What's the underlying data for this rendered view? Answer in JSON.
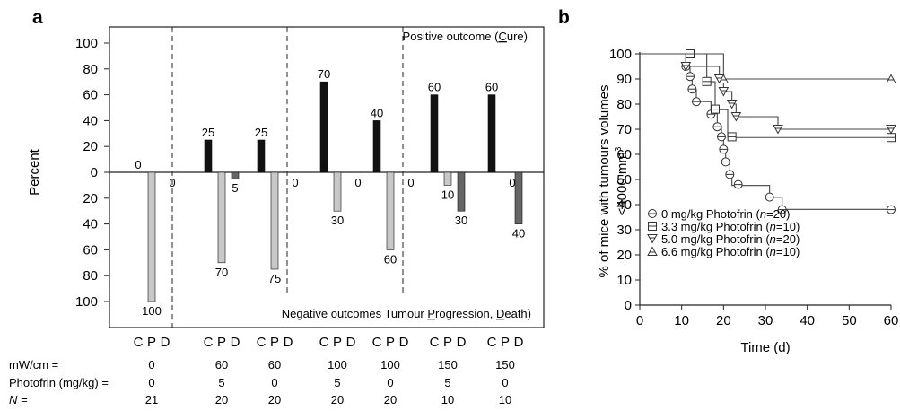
{
  "chart_data": [
    {
      "panel_label": "a",
      "type": "bar",
      "ylabel": "Percent",
      "ylim": [
        -100,
        100
      ],
      "yticks": [
        "100",
        "80",
        "60",
        "40",
        "20",
        "0",
        "20",
        "40",
        "60",
        "80",
        "100"
      ],
      "annotation_top": {
        "prefix": "Positive outcome (",
        "underlined": "C",
        "rest": "ure)"
      },
      "annotation_bottom": {
        "prefix": "Negative outcomes Tumour ",
        "u1": "P",
        "mid": "rogression, ",
        "u2": "D",
        "rest": "eath)"
      },
      "bar_letters": [
        "C",
        "P",
        "D"
      ],
      "groups": [
        {
          "cure": null,
          "progression": 100,
          "death": null,
          "labels": [
            "0",
            "100",
            "0"
          ]
        },
        {
          "cure": 25,
          "progression": 70,
          "death": 5,
          "labels": [
            "25",
            "70",
            "5"
          ]
        },
        {
          "cure": 25,
          "progression": 75,
          "death": null,
          "labels": [
            "25",
            "75",
            "0"
          ]
        },
        {
          "cure": 70,
          "progression": 30,
          "death": null,
          "labels": [
            "70",
            "30",
            "0"
          ]
        },
        {
          "cure": 40,
          "progression": 60,
          "death": null,
          "labels": [
            "40",
            "60",
            "0"
          ]
        },
        {
          "cure": 60,
          "progression": 10,
          "death": 30,
          "labels": [
            "60",
            "10",
            "30"
          ]
        },
        {
          "cure": 60,
          "progression": null,
          "death": 40,
          "labels": [
            "60",
            "0",
            "40"
          ]
        }
      ],
      "colors": {
        "cure": "#111111",
        "progression": "#c8c8c8",
        "death": "#666666"
      },
      "table": {
        "rows": [
          {
            "label": "mW/cm =",
            "values": [
              "0",
              "60",
              "60",
              "100",
              "100",
              "150",
              "150"
            ]
          },
          {
            "label": "Photofrin (mg/kg) =",
            "values": [
              "0",
              "5",
              "0",
              "5",
              "0",
              "5",
              "0"
            ]
          },
          {
            "label": "N =",
            "values": [
              "21",
              "20",
              "20",
              "20",
              "20",
              "10",
              "10"
            ]
          }
        ]
      }
    },
    {
      "panel_label": "b",
      "type": "line",
      "xlabel": "Time (d)",
      "ylabel_line1": "% of mice with tumours volumes",
      "ylabel_line2": "<4000 mm",
      "ylabel_sup": "3",
      "xlim": [
        0,
        60
      ],
      "ylim": [
        0,
        100
      ],
      "xticks": [
        "0",
        "10",
        "20",
        "30",
        "40",
        "50",
        "60"
      ],
      "yticks": [
        "0",
        "10",
        "20",
        "30",
        "40",
        "50",
        "60",
        "70",
        "80",
        "90",
        "100"
      ],
      "series": [
        {
          "name_prefix": "0 mg/kg Photofrin (",
          "n_value": "=20)",
          "marker": "circle",
          "steps": [
            [
              0,
              100
            ],
            [
              11,
              95.2
            ],
            [
              12,
              90.5
            ],
            [
              12.5,
              85.7
            ],
            [
              13.5,
              81
            ],
            [
              17,
              76.2
            ],
            [
              18.5,
              71.4
            ],
            [
              19.5,
              66.7
            ],
            [
              20,
              61.9
            ],
            [
              20.5,
              57.1
            ],
            [
              21.5,
              52.4
            ],
            [
              22,
              47.6
            ],
            [
              31,
              42.9
            ],
            [
              34,
              38.1
            ],
            [
              60,
              38.1
            ]
          ],
          "markers": [
            [
              11,
              95
            ],
            [
              12,
              91
            ],
            [
              12.5,
              86
            ],
            [
              13.5,
              81
            ],
            [
              17,
              76
            ],
            [
              18.5,
              71
            ],
            [
              19.5,
              67
            ],
            [
              20,
              62
            ],
            [
              20.5,
              57
            ],
            [
              21.5,
              52
            ],
            [
              23.5,
              48
            ],
            [
              31,
              43
            ],
            [
              34,
              38
            ],
            [
              60,
              38
            ]
          ]
        },
        {
          "name_prefix": "3.3 mg/kg Photofrin (",
          "n_value": "=10)",
          "marker": "square",
          "steps": [
            [
              0,
              100
            ],
            [
              12,
              100
            ],
            [
              16,
              88.9
            ],
            [
              18,
              77.8
            ],
            [
              21,
              66.7
            ],
            [
              60,
              66.7
            ]
          ],
          "markers": [
            [
              12,
              100
            ],
            [
              16,
              89
            ],
            [
              18,
              78
            ],
            [
              22,
              67
            ],
            [
              60,
              66.7
            ]
          ]
        },
        {
          "name_prefix": "5.0 mg/kg Photofrin (",
          "n_value": "=20)",
          "marker": "tri-down",
          "steps": [
            [
              0,
              100
            ],
            [
              11,
              95
            ],
            [
              19,
              90
            ],
            [
              20,
              85
            ],
            [
              22,
              80
            ],
            [
              23,
              75
            ],
            [
              33,
              70
            ],
            [
              60,
              70
            ]
          ],
          "markers": [
            [
              11,
              95
            ],
            [
              19,
              90
            ],
            [
              20,
              85
            ],
            [
              22,
              80
            ],
            [
              23,
              75
            ],
            [
              33,
              70
            ],
            [
              60,
              70
            ]
          ]
        },
        {
          "name_prefix": "6.6 mg/kg Photofrin (",
          "n_value": "=10)",
          "marker": "tri-up",
          "steps": [
            [
              0,
              100
            ],
            [
              20,
              90
            ],
            [
              60,
              90
            ]
          ],
          "markers": [
            [
              20,
              90
            ],
            [
              60,
              90
            ]
          ]
        }
      ]
    }
  ]
}
